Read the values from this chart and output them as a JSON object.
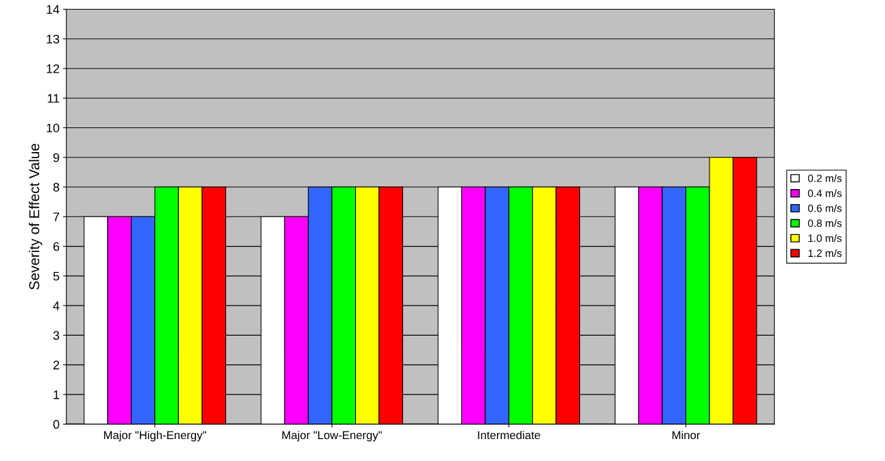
{
  "chart_data": {
    "type": "bar",
    "ylabel": "Severity of Effect Value",
    "categories": [
      "Major \"High-Energy\"",
      "Major \"Low-Energy\"",
      "Intermediate",
      "Minor"
    ],
    "series": [
      {
        "name": "0.2 m/s",
        "color": "#ffffff",
        "values": [
          7,
          7,
          8,
          8
        ]
      },
      {
        "name": "0.4 m/s",
        "color": "#ff00ff",
        "values": [
          7,
          7,
          8,
          8
        ]
      },
      {
        "name": "0.6 m/s",
        "color": "#3366ff",
        "values": [
          7,
          8,
          8,
          8
        ]
      },
      {
        "name": "0.8 m/s",
        "color": "#00ff00",
        "values": [
          8,
          8,
          8,
          8
        ]
      },
      {
        "name": "1.0 m/s",
        "color": "#ffff00",
        "values": [
          8,
          8,
          8,
          9
        ]
      },
      {
        "name": "1.2 m/s",
        "color": "#ff0000",
        "values": [
          8,
          8,
          8,
          9
        ]
      }
    ],
    "ylim": [
      0,
      14
    ],
    "yticks": [
      0,
      1,
      2,
      3,
      4,
      5,
      6,
      7,
      8,
      9,
      10,
      11,
      12,
      13,
      14
    ],
    "grid": "y",
    "legend": "right"
  }
}
